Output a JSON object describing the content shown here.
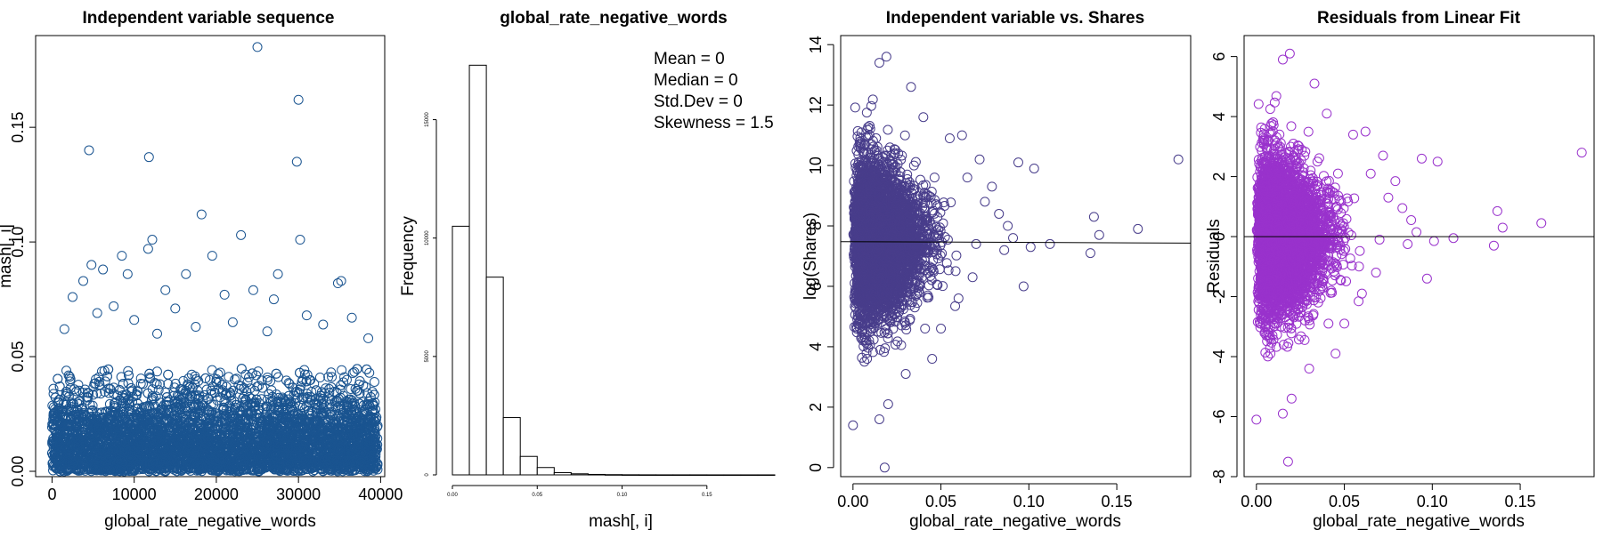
{
  "chart_data": [
    {
      "type": "scatter",
      "title": "Independent variable sequence",
      "xlabel": "global_rate_negative_words",
      "ylabel": "mash[, i]",
      "xlim": [
        -2000,
        40500
      ],
      "ylim": [
        0,
        0.19
      ],
      "xticks": [
        0,
        10000,
        20000,
        30000,
        40000
      ],
      "xtick_labels": [
        "0",
        "10000",
        "20000",
        "30000",
        "40000"
      ],
      "yticks": [
        0,
        0.05,
        0.1,
        0.15
      ],
      "ytick_labels": [
        "0.00",
        "0.05",
        "0.10",
        "0.15"
      ],
      "marker_color": "#1a5490",
      "dense_band": {
        "x": [
          0,
          39644
        ],
        "y": [
          0,
          0.045
        ]
      },
      "points": [
        {
          "x": 4500,
          "y": 0.14
        },
        {
          "x": 11800,
          "y": 0.137
        },
        {
          "x": 25000,
          "y": 0.185
        },
        {
          "x": 30000,
          "y": 0.162
        },
        {
          "x": 29800,
          "y": 0.135
        },
        {
          "x": 30200,
          "y": 0.101
        },
        {
          "x": 18200,
          "y": 0.112
        },
        {
          "x": 23000,
          "y": 0.103
        },
        {
          "x": 12200,
          "y": 0.101
        },
        {
          "x": 11700,
          "y": 0.097
        },
        {
          "x": 19500,
          "y": 0.094
        },
        {
          "x": 8500,
          "y": 0.094
        },
        {
          "x": 4800,
          "y": 0.09
        },
        {
          "x": 35200,
          "y": 0.083
        },
        {
          "x": 34800,
          "y": 0.082
        },
        {
          "x": 27500,
          "y": 0.086
        },
        {
          "x": 16300,
          "y": 0.086
        },
        {
          "x": 9200,
          "y": 0.086
        },
        {
          "x": 6200,
          "y": 0.088
        },
        {
          "x": 3800,
          "y": 0.083
        },
        {
          "x": 21000,
          "y": 0.077
        },
        {
          "x": 24500,
          "y": 0.079
        },
        {
          "x": 13800,
          "y": 0.079
        },
        {
          "x": 2500,
          "y": 0.076
        },
        {
          "x": 27000,
          "y": 0.075
        },
        {
          "x": 31000,
          "y": 0.068
        },
        {
          "x": 36500,
          "y": 0.067
        },
        {
          "x": 33000,
          "y": 0.064
        },
        {
          "x": 15000,
          "y": 0.071
        },
        {
          "x": 7500,
          "y": 0.072
        },
        {
          "x": 10000,
          "y": 0.066
        },
        {
          "x": 22000,
          "y": 0.065
        },
        {
          "x": 1500,
          "y": 0.062
        },
        {
          "x": 38500,
          "y": 0.058
        },
        {
          "x": 17500,
          "y": 0.063
        },
        {
          "x": 5500,
          "y": 0.069
        },
        {
          "x": 26200,
          "y": 0.061
        },
        {
          "x": 12800,
          "y": 0.06
        }
      ]
    },
    {
      "type": "bar",
      "title": "global_rate_negative_words",
      "xlabel": "mash[, i]",
      "ylabel": "Frequency",
      "xlim": [
        0,
        0.19
      ],
      "ylim": [
        0,
        17500
      ],
      "xticks": [
        0,
        0.05,
        0.1,
        0.15
      ],
      "xtick_labels": [
        "0.00",
        "0.05",
        "0.10",
        "0.15"
      ],
      "yticks": [
        0,
        5000,
        10000,
        15000
      ],
      "ytick_labels": [
        "0",
        "5000",
        "10000",
        "15000"
      ],
      "bin_width": 0.01,
      "bin_starts": [
        0,
        0.01,
        0.02,
        0.03,
        0.04,
        0.05,
        0.06,
        0.07,
        0.08,
        0.09,
        0.1,
        0.11,
        0.12,
        0.13,
        0.14,
        0.15,
        0.16,
        0.17,
        0.18
      ],
      "values": [
        10500,
        17300,
        8350,
        2420,
        780,
        310,
        95,
        45,
        20,
        10,
        5,
        3,
        2,
        2,
        2,
        1,
        1,
        1,
        1
      ],
      "annotations": [
        "Mean = 0",
        "Median = 0",
        "Std.Dev = 0",
        "Skewness = 1.5"
      ]
    },
    {
      "type": "scatter",
      "title": "Independent variable vs. Shares",
      "xlabel": "global_rate_negative_words",
      "ylabel": "log(Shares)",
      "xlim": [
        -0.007,
        0.192
      ],
      "ylim": [
        -0.3,
        14.3
      ],
      "xticks": [
        0,
        0.05,
        0.1,
        0.15
      ],
      "xtick_labels": [
        "0.00",
        "0.05",
        "0.10",
        "0.15"
      ],
      "yticks": [
        0,
        2,
        4,
        6,
        8,
        10,
        12,
        14
      ],
      "ytick_labels": [
        "0",
        "2",
        "4",
        "6",
        "8",
        "10",
        "12",
        "14"
      ],
      "marker_color": "#483d8b",
      "fit_line": {
        "x": [
          -0.007,
          0.192
        ],
        "y": [
          7.48,
          7.43
        ]
      },
      "points": [
        {
          "x": 0.185,
          "y": 10.2
        },
        {
          "x": 0.162,
          "y": 7.9
        },
        {
          "x": 0.14,
          "y": 7.7
        },
        {
          "x": 0.137,
          "y": 8.3
        },
        {
          "x": 0.135,
          "y": 7.1
        },
        {
          "x": 0.112,
          "y": 7.4
        },
        {
          "x": 0.103,
          "y": 9.9
        },
        {
          "x": 0.101,
          "y": 7.3
        },
        {
          "x": 0.097,
          "y": 6.0
        },
        {
          "x": 0.094,
          "y": 10.1
        },
        {
          "x": 0.0,
          "y": 1.4
        },
        {
          "x": 0.018,
          "y": 0.0
        },
        {
          "x": 0.02,
          "y": 2.1
        },
        {
          "x": 0.015,
          "y": 1.6
        },
        {
          "x": 0.015,
          "y": 13.4
        },
        {
          "x": 0.019,
          "y": 13.6
        },
        {
          "x": 0.033,
          "y": 12.6
        },
        {
          "x": 0.086,
          "y": 7.2
        },
        {
          "x": 0.083,
          "y": 8.4
        },
        {
          "x": 0.079,
          "y": 9.3
        },
        {
          "x": 0.075,
          "y": 8.8
        },
        {
          "x": 0.07,
          "y": 7.4
        },
        {
          "x": 0.065,
          "y": 9.6
        },
        {
          "x": 0.06,
          "y": 5.6
        },
        {
          "x": 0.055,
          "y": 10.9
        },
        {
          "x": 0.05,
          "y": 4.6
        },
        {
          "x": 0.045,
          "y": 3.6
        },
        {
          "x": 0.03,
          "y": 3.1
        },
        {
          "x": 0.008,
          "y": 3.6
        },
        {
          "x": 0.04,
          "y": 11.6
        },
        {
          "x": 0.068,
          "y": 6.3
        },
        {
          "x": 0.072,
          "y": 10.2
        },
        {
          "x": 0.088,
          "y": 8.0
        },
        {
          "x": 0.091,
          "y": 7.6
        },
        {
          "x": 0.062,
          "y": 11.0
        }
      ]
    },
    {
      "type": "scatter",
      "title": "Residuals from Linear Fit",
      "xlabel": "global_rate_negative_words",
      "ylabel": "Residuals",
      "xlim": [
        -0.007,
        0.192
      ],
      "ylim": [
        -8,
        6.7
      ],
      "xticks": [
        0,
        0.05,
        0.1,
        0.15
      ],
      "xtick_labels": [
        "0.00",
        "0.05",
        "0.10",
        "0.15"
      ],
      "yticks": [
        -8,
        -6,
        -4,
        -2,
        0,
        2,
        4,
        6
      ],
      "ytick_labels": [
        "-8",
        "-6",
        "-4",
        "-2",
        "0",
        "2",
        "4",
        "6"
      ],
      "marker_color": "#9932cc",
      "fit_line": {
        "x": [
          -0.007,
          0.192
        ],
        "y": [
          0,
          0
        ]
      },
      "points": [
        {
          "x": 0.185,
          "y": 2.8
        },
        {
          "x": 0.162,
          "y": 0.45
        },
        {
          "x": 0.14,
          "y": 0.3
        },
        {
          "x": 0.137,
          "y": 0.85
        },
        {
          "x": 0.135,
          "y": -0.3
        },
        {
          "x": 0.112,
          "y": -0.05
        },
        {
          "x": 0.103,
          "y": 2.5
        },
        {
          "x": 0.101,
          "y": -0.15
        },
        {
          "x": 0.097,
          "y": -1.4
        },
        {
          "x": 0.094,
          "y": 2.6
        },
        {
          "x": 0.0,
          "y": -6.1
        },
        {
          "x": 0.018,
          "y": -7.5
        },
        {
          "x": 0.02,
          "y": -5.4
        },
        {
          "x": 0.015,
          "y": -5.9
        },
        {
          "x": 0.015,
          "y": 5.9
        },
        {
          "x": 0.019,
          "y": 6.1
        },
        {
          "x": 0.033,
          "y": 5.1
        },
        {
          "x": 0.086,
          "y": -0.25
        },
        {
          "x": 0.083,
          "y": 0.95
        },
        {
          "x": 0.079,
          "y": 1.85
        },
        {
          "x": 0.075,
          "y": 1.3
        },
        {
          "x": 0.07,
          "y": -0.1
        },
        {
          "x": 0.065,
          "y": 2.1
        },
        {
          "x": 0.06,
          "y": -1.9
        },
        {
          "x": 0.055,
          "y": 3.4
        },
        {
          "x": 0.05,
          "y": -2.9
        },
        {
          "x": 0.045,
          "y": -3.9
        },
        {
          "x": 0.03,
          "y": -4.4
        },
        {
          "x": 0.008,
          "y": -3.9
        },
        {
          "x": 0.04,
          "y": 4.1
        },
        {
          "x": 0.068,
          "y": -1.2
        },
        {
          "x": 0.072,
          "y": 2.7
        },
        {
          "x": 0.088,
          "y": 0.55
        },
        {
          "x": 0.091,
          "y": 0.15
        },
        {
          "x": 0.062,
          "y": 3.5
        }
      ]
    }
  ]
}
